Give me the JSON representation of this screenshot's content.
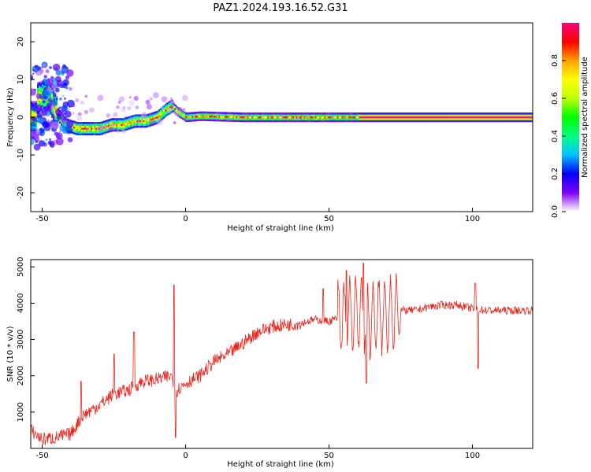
{
  "chart_data": [
    {
      "type": "heatmap",
      "title": "PAZ1.2024.193.16.52.G31",
      "xlabel": "Height of straight line (km)",
      "ylabel": "Frequency (Hz)",
      "xlim": [
        -54,
        121
      ],
      "ylim": [
        -25,
        25
      ],
      "x_ticks": [
        -50,
        0,
        50,
        100
      ],
      "y_ticks": [
        -20,
        -10,
        0,
        10,
        20
      ],
      "colorbar": {
        "label": "Normalized spectral amplitude",
        "range": [
          0,
          1
        ],
        "ticks": [
          0.0,
          0.2,
          0.4,
          0.6,
          0.8
        ],
        "colors": [
          "#ffffff",
          "#8000ff",
          "#0000ff",
          "#00c0ff",
          "#00ff80",
          "#00ff00",
          "#c0ff00",
          "#ffff00",
          "#ffa000",
          "#ff0000",
          "#ff0080"
        ]
      },
      "ridge_center": {
        "x": [
          -52,
          -48,
          -45,
          -42,
          -38,
          -34,
          -30,
          -26,
          -22,
          -18,
          -14,
          -10,
          -7,
          -5,
          -3,
          0,
          5,
          10,
          20,
          30,
          40,
          60,
          80,
          100,
          121
        ],
        "y": [
          5,
          6,
          1,
          -2,
          -3,
          -3,
          -3,
          -2,
          -2,
          -1,
          -1,
          0,
          2,
          3,
          1.5,
          0,
          0.3,
          0.2,
          0,
          0,
          0,
          0,
          0,
          0,
          0
        ]
      }
    },
    {
      "type": "line",
      "xlabel": "Height of straight line (km)",
      "ylabel": "SNR (10 * v/v)",
      "xlim": [
        -54,
        121
      ],
      "ylim": [
        0,
        5200
      ],
      "x_ticks": [
        -50,
        0,
        50,
        100
      ],
      "y_ticks": [
        1000,
        2000,
        3000,
        4000,
        5000
      ],
      "series": [
        {
          "color": "#e8261e",
          "trend": {
            "x": [
              -54,
              -50,
              -45,
              -40,
              -36,
              -30,
              -25,
              -20,
              -15,
              -10,
              -5,
              -3,
              0,
              5,
              10,
              15,
              20,
              25,
              30,
              35,
              40,
              45,
              50,
              55,
              60,
              65,
              70,
              75,
              80,
              85,
              90,
              95,
              100,
              105,
              110,
              115,
              121
            ],
            "y": [
              500,
              250,
              300,
              400,
              900,
              1200,
              1500,
              1600,
              1850,
              1900,
              2000,
              1600,
              1800,
              2000,
              2400,
              2600,
              2900,
              3200,
              3350,
              3400,
              3450,
              3550,
              3500,
              3650,
              3700,
              3600,
              3700,
              3800,
              3800,
              3900,
              3950,
              3950,
              3850,
              3800,
              3800,
              3800,
              3800
            ]
          },
          "spikes": [
            {
              "x": -36.5,
              "y": 1850
            },
            {
              "x": -25,
              "y": 2600
            },
            {
              "x": -18,
              "y": 3200
            },
            {
              "x": -4,
              "y": 4500
            },
            {
              "x": -3.5,
              "y": 300
            },
            {
              "x": 48,
              "y": 4400
            },
            {
              "x": 56,
              "y": 4900
            },
            {
              "x": 62,
              "y": 5100
            },
            {
              "x": 63,
              "y": 1800
            },
            {
              "x": 101,
              "y": 4550
            },
            {
              "x": 102,
              "y": 2200
            }
          ],
          "oscillation_region": {
            "x": [
              53,
              75
            ],
            "amplitude": 1200
          }
        }
      ]
    }
  ]
}
